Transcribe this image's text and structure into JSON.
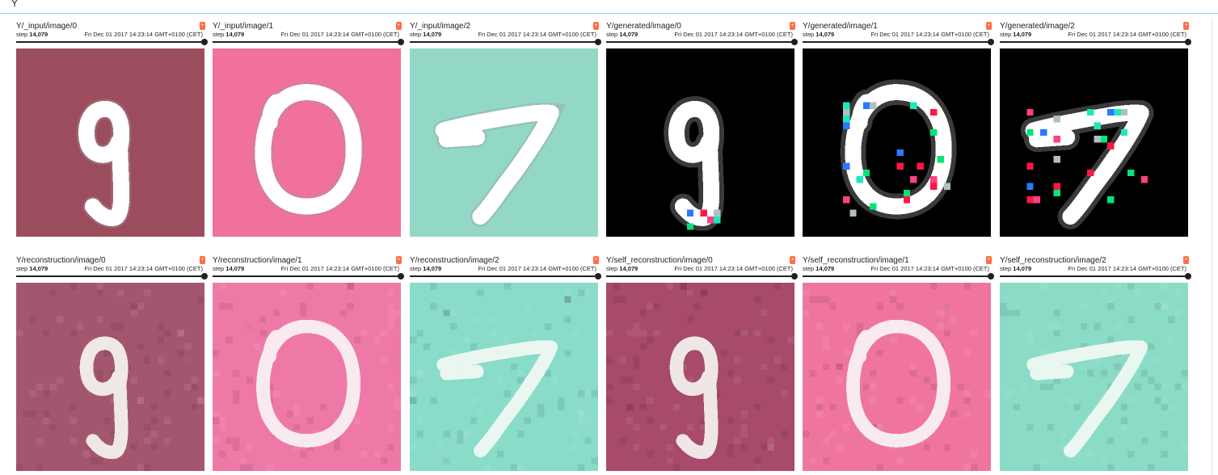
{
  "filter": {
    "value": "Y"
  },
  "step_label": "step",
  "cards": [
    {
      "title": "Y/_input/image/0",
      "step": "14,079",
      "time": "Fri Dec 01 2017 14:23:14 GMT+0100 (CET)",
      "digit": "9",
      "kind": "input",
      "bg": "#9b4d5e",
      "fg": "#ffffff"
    },
    {
      "title": "Y/_input/image/1",
      "step": "14,079",
      "time": "Fri Dec 01 2017 14:23:14 GMT+0100 (CET)",
      "digit": "0",
      "kind": "input",
      "bg": "#f0719c",
      "fg": "#ffffff"
    },
    {
      "title": "Y/_input/image/2",
      "step": "14,079",
      "time": "Fri Dec 01 2017 14:23:14 GMT+0100 (CET)",
      "digit": "7",
      "kind": "input",
      "bg": "#93d8c6",
      "fg": "#ffffff"
    },
    {
      "title": "Y/generated/image/0",
      "step": "14,079",
      "time": "Fri Dec 01 2017 14:23:14 GMT+0100 (CET)",
      "digit": "9",
      "kind": "generated",
      "bg": "#000000",
      "fg": "#ffffff"
    },
    {
      "title": "Y/generated/image/1",
      "step": "14,079",
      "time": "Fri Dec 01 2017 14:23:14 GMT+0100 (CET)",
      "digit": "0",
      "kind": "generated",
      "bg": "#000000",
      "fg": "#ffffff"
    },
    {
      "title": "Y/generated/image/2",
      "step": "14,079",
      "time": "Fri Dec 01 2017 14:23:14 GMT+0100 (CET)",
      "digit": "7",
      "kind": "generated",
      "bg": "#000000",
      "fg": "#ffffff"
    },
    {
      "title": "Y/reconstruction/image/0",
      "step": "14,079",
      "time": "Fri Dec 01 2017 14:23:14 GMT+0100 (CET)",
      "digit": "9",
      "kind": "recon",
      "bg": "#a5566f",
      "fg": "#f4f4f0"
    },
    {
      "title": "Y/reconstruction/image/1",
      "step": "14,079",
      "time": "Fri Dec 01 2017 14:23:14 GMT+0100 (CET)",
      "digit": "0",
      "kind": "recon",
      "bg": "#ee79a6",
      "fg": "#f8f4f4"
    },
    {
      "title": "Y/reconstruction/image/2",
      "step": "14,079",
      "time": "Fri Dec 01 2017 14:23:14 GMT+0100 (CET)",
      "digit": "7",
      "kind": "recon",
      "bg": "#88dcc8",
      "fg": "#f2f8f4"
    },
    {
      "title": "Y/self_reconstruction/image/0",
      "step": "14,079",
      "time": "Fri Dec 01 2017 14:23:14 GMT+0100 (CET)",
      "digit": "9",
      "kind": "recon",
      "bg": "#a84a6c",
      "fg": "#f4f4f0"
    },
    {
      "title": "Y/self_reconstruction/image/1",
      "step": "14,079",
      "time": "Fri Dec 01 2017 14:23:14 GMT+0100 (CET)",
      "digit": "0",
      "kind": "recon",
      "bg": "#ef75a0",
      "fg": "#f8f4f4"
    },
    {
      "title": "Y/self_reconstruction/image/2",
      "step": "14,079",
      "time": "Fri Dec 01 2017 14:23:14 GMT+0100 (CET)",
      "digit": "7",
      "kind": "recon",
      "bg": "#8adcc6",
      "fg": "#f2f8f4"
    }
  ],
  "icons": {
    "card_action": "download-icon",
    "slider_knob": "slider-knob"
  }
}
